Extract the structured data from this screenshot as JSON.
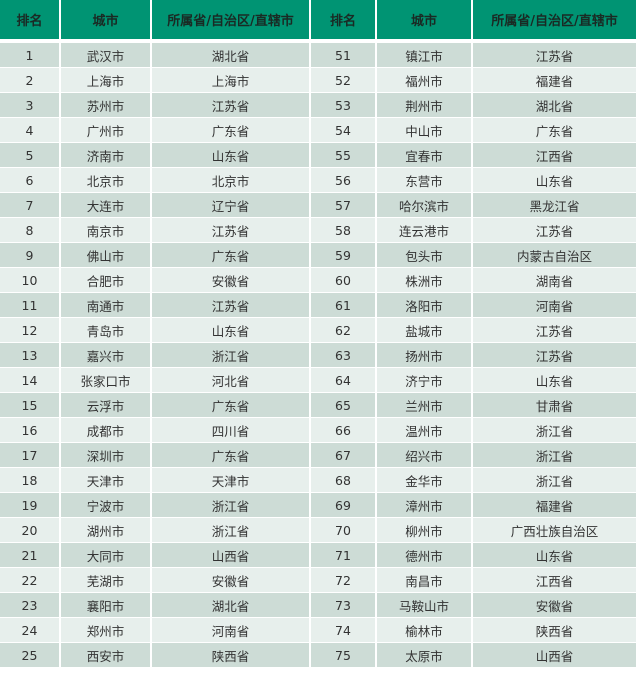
{
  "header": [
    "排名",
    "城市",
    "所属省/自治区/直辖市",
    "排名",
    "城市",
    "所属省/自治区/直辖市"
  ],
  "colors": {
    "header": "#009473",
    "row_odd": "#cddcd6",
    "row_even": "#e7efec"
  },
  "rows": [
    [
      [
        "1",
        "武汉市",
        "湖北省"
      ],
      [
        "51",
        "镇江市",
        "江苏省"
      ]
    ],
    [
      [
        "2",
        "上海市",
        "上海市"
      ],
      [
        "52",
        "福州市",
        "福建省"
      ]
    ],
    [
      [
        "3",
        "苏州市",
        "江苏省"
      ],
      [
        "53",
        "荆州市",
        "湖北省"
      ]
    ],
    [
      [
        "4",
        "广州市",
        "广东省"
      ],
      [
        "54",
        "中山市",
        "广东省"
      ]
    ],
    [
      [
        "5",
        "济南市",
        "山东省"
      ],
      [
        "55",
        "宜春市",
        "江西省"
      ]
    ],
    [
      [
        "6",
        "北京市",
        "北京市"
      ],
      [
        "56",
        "东营市",
        "山东省"
      ]
    ],
    [
      [
        "7",
        "大连市",
        "辽宁省"
      ],
      [
        "57",
        "哈尔滨市",
        "黑龙江省"
      ]
    ],
    [
      [
        "8",
        "南京市",
        "江苏省"
      ],
      [
        "58",
        "连云港市",
        "江苏省"
      ]
    ],
    [
      [
        "9",
        "佛山市",
        "广东省"
      ],
      [
        "59",
        "包头市",
        "内蒙古自治区"
      ]
    ],
    [
      [
        "10",
        "合肥市",
        "安徽省"
      ],
      [
        "60",
        "株洲市",
        "湖南省"
      ]
    ],
    [
      [
        "11",
        "南通市",
        "江苏省"
      ],
      [
        "61",
        "洛阳市",
        "河南省"
      ]
    ],
    [
      [
        "12",
        "青岛市",
        "山东省"
      ],
      [
        "62",
        "盐城市",
        "江苏省"
      ]
    ],
    [
      [
        "13",
        "嘉兴市",
        "浙江省"
      ],
      [
        "63",
        "扬州市",
        "江苏省"
      ]
    ],
    [
      [
        "14",
        "张家口市",
        "河北省"
      ],
      [
        "64",
        "济宁市",
        "山东省"
      ]
    ],
    [
      [
        "15",
        "云浮市",
        "广东省"
      ],
      [
        "65",
        "兰州市",
        "甘肃省"
      ]
    ],
    [
      [
        "16",
        "成都市",
        "四川省"
      ],
      [
        "66",
        "温州市",
        "浙江省"
      ]
    ],
    [
      [
        "17",
        "深圳市",
        "广东省"
      ],
      [
        "67",
        "绍兴市",
        "浙江省"
      ]
    ],
    [
      [
        "18",
        "天津市",
        "天津市"
      ],
      [
        "68",
        "金华市",
        "浙江省"
      ]
    ],
    [
      [
        "19",
        "宁波市",
        "浙江省"
      ],
      [
        "69",
        "漳州市",
        "福建省"
      ]
    ],
    [
      [
        "20",
        "湖州市",
        "浙江省"
      ],
      [
        "70",
        "柳州市",
        "广西壮族自治区"
      ]
    ],
    [
      [
        "21",
        "大同市",
        "山西省"
      ],
      [
        "71",
        "德州市",
        "山东省"
      ]
    ],
    [
      [
        "22",
        "芜湖市",
        "安徽省"
      ],
      [
        "72",
        "南昌市",
        "江西省"
      ]
    ],
    [
      [
        "23",
        "襄阳市",
        "湖北省"
      ],
      [
        "73",
        "马鞍山市",
        "安徽省"
      ]
    ],
    [
      [
        "24",
        "郑州市",
        "河南省"
      ],
      [
        "74",
        "榆林市",
        "陕西省"
      ]
    ],
    [
      [
        "25",
        "西安市",
        "陕西省"
      ],
      [
        "75",
        "太原市",
        "山西省"
      ]
    ]
  ]
}
